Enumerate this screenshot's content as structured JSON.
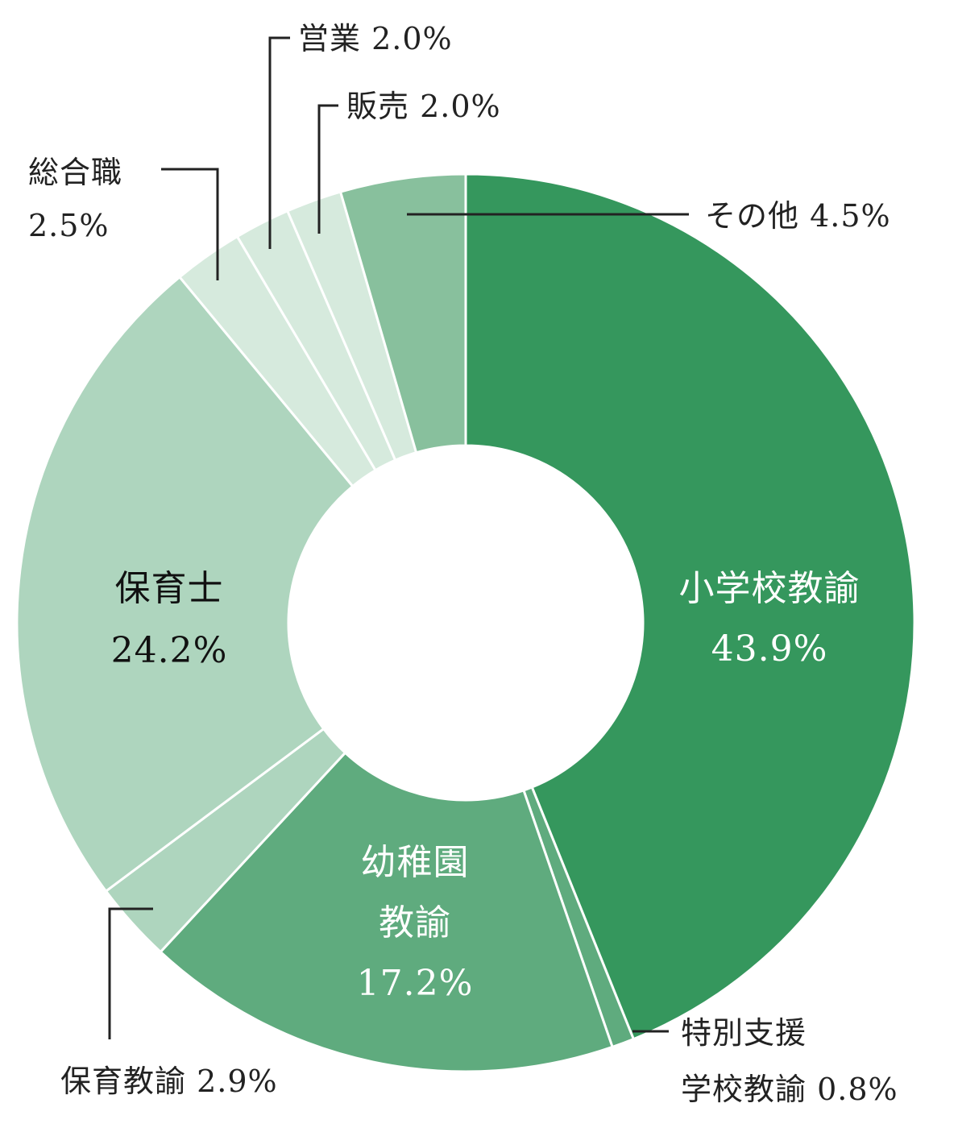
{
  "chart_data": {
    "type": "pie",
    "donut": true,
    "slices": [
      {
        "label": "小学校教諭",
        "value": 43.9,
        "value_text": "43.9%",
        "color": "#35975d"
      },
      {
        "label": "特別支援学校教諭",
        "value": 0.8,
        "value_text": "0.8%",
        "color": "#5fab7e"
      },
      {
        "label": "幼稚園教諭",
        "value": 17.2,
        "value_text": "17.2%",
        "color": "#5fab7e"
      },
      {
        "label": "保育教諭",
        "value": 2.9,
        "value_text": "2.9%",
        "color": "#aed5be"
      },
      {
        "label": "保育士",
        "value": 24.2,
        "value_text": "24.2%",
        "color": "#aed5be"
      },
      {
        "label": "総合職",
        "value": 2.5,
        "value_text": "2.5%",
        "color": "#d6eadd"
      },
      {
        "label": "営業",
        "value": 2.0,
        "value_text": "2.0%",
        "color": "#d6eadd"
      },
      {
        "label": "販売",
        "value": 2.0,
        "value_text": "2.0%",
        "color": "#d6eadd"
      },
      {
        "label": "その他",
        "value": 4.5,
        "value_text": "4.5%",
        "color": "#88c09d"
      }
    ]
  },
  "labels": {
    "shogakko": {
      "name": "小学校教諭",
      "value": "43.9%"
    },
    "tokubetsu": {
      "line1": "特別支援",
      "line2": "学校教諭 0.8%"
    },
    "yochien": {
      "line1": "幼稚園",
      "line2": "教諭",
      "value": "17.2%"
    },
    "hoiku_kyoyu": {
      "text": "保育教諭 2.9%"
    },
    "hoikushi": {
      "name": "保育士",
      "value": "24.2%"
    },
    "sogo": {
      "name": "総合職",
      "value": "2.5%"
    },
    "eigyo": {
      "text": "営業 2.0%"
    },
    "hanbai": {
      "text": "販売 2.0%"
    },
    "sonota": {
      "text": "その他 4.5%"
    }
  }
}
